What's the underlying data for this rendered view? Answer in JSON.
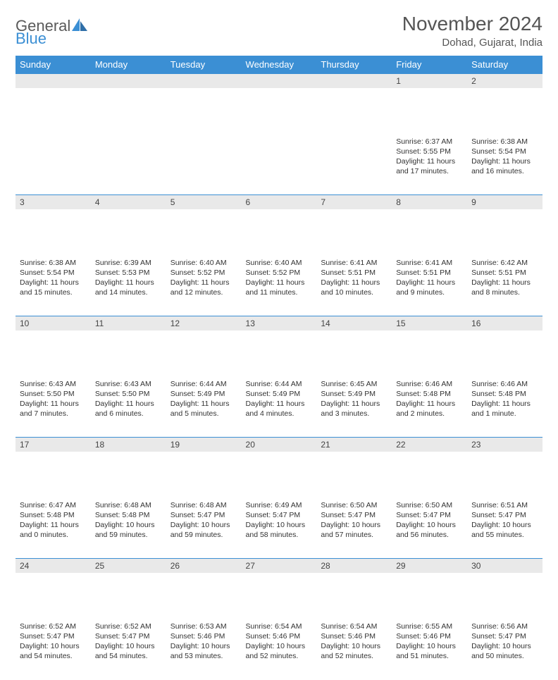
{
  "logo": {
    "text1": "General",
    "text2": "Blue"
  },
  "title": "November 2024",
  "location": "Dohad, Gujarat, India",
  "colors": {
    "header_bg": "#3b8fd4",
    "header_text": "#ffffff",
    "daynum_bg": "#e9e9e9",
    "border": "#3b8fd4",
    "page_bg": "#ffffff",
    "text": "#333333"
  },
  "days_of_week": [
    "Sunday",
    "Monday",
    "Tuesday",
    "Wednesday",
    "Thursday",
    "Friday",
    "Saturday"
  ],
  "weeks": [
    [
      null,
      null,
      null,
      null,
      null,
      {
        "n": "1",
        "sunrise": "Sunrise: 6:37 AM",
        "sunset": "Sunset: 5:55 PM",
        "daylight": "Daylight: 11 hours and 17 minutes."
      },
      {
        "n": "2",
        "sunrise": "Sunrise: 6:38 AM",
        "sunset": "Sunset: 5:54 PM",
        "daylight": "Daylight: 11 hours and 16 minutes."
      }
    ],
    [
      {
        "n": "3",
        "sunrise": "Sunrise: 6:38 AM",
        "sunset": "Sunset: 5:54 PM",
        "daylight": "Daylight: 11 hours and 15 minutes."
      },
      {
        "n": "4",
        "sunrise": "Sunrise: 6:39 AM",
        "sunset": "Sunset: 5:53 PM",
        "daylight": "Daylight: 11 hours and 14 minutes."
      },
      {
        "n": "5",
        "sunrise": "Sunrise: 6:40 AM",
        "sunset": "Sunset: 5:52 PM",
        "daylight": "Daylight: 11 hours and 12 minutes."
      },
      {
        "n": "6",
        "sunrise": "Sunrise: 6:40 AM",
        "sunset": "Sunset: 5:52 PM",
        "daylight": "Daylight: 11 hours and 11 minutes."
      },
      {
        "n": "7",
        "sunrise": "Sunrise: 6:41 AM",
        "sunset": "Sunset: 5:51 PM",
        "daylight": "Daylight: 11 hours and 10 minutes."
      },
      {
        "n": "8",
        "sunrise": "Sunrise: 6:41 AM",
        "sunset": "Sunset: 5:51 PM",
        "daylight": "Daylight: 11 hours and 9 minutes."
      },
      {
        "n": "9",
        "sunrise": "Sunrise: 6:42 AM",
        "sunset": "Sunset: 5:51 PM",
        "daylight": "Daylight: 11 hours and 8 minutes."
      }
    ],
    [
      {
        "n": "10",
        "sunrise": "Sunrise: 6:43 AM",
        "sunset": "Sunset: 5:50 PM",
        "daylight": "Daylight: 11 hours and 7 minutes."
      },
      {
        "n": "11",
        "sunrise": "Sunrise: 6:43 AM",
        "sunset": "Sunset: 5:50 PM",
        "daylight": "Daylight: 11 hours and 6 minutes."
      },
      {
        "n": "12",
        "sunrise": "Sunrise: 6:44 AM",
        "sunset": "Sunset: 5:49 PM",
        "daylight": "Daylight: 11 hours and 5 minutes."
      },
      {
        "n": "13",
        "sunrise": "Sunrise: 6:44 AM",
        "sunset": "Sunset: 5:49 PM",
        "daylight": "Daylight: 11 hours and 4 minutes."
      },
      {
        "n": "14",
        "sunrise": "Sunrise: 6:45 AM",
        "sunset": "Sunset: 5:49 PM",
        "daylight": "Daylight: 11 hours and 3 minutes."
      },
      {
        "n": "15",
        "sunrise": "Sunrise: 6:46 AM",
        "sunset": "Sunset: 5:48 PM",
        "daylight": "Daylight: 11 hours and 2 minutes."
      },
      {
        "n": "16",
        "sunrise": "Sunrise: 6:46 AM",
        "sunset": "Sunset: 5:48 PM",
        "daylight": "Daylight: 11 hours and 1 minute."
      }
    ],
    [
      {
        "n": "17",
        "sunrise": "Sunrise: 6:47 AM",
        "sunset": "Sunset: 5:48 PM",
        "daylight": "Daylight: 11 hours and 0 minutes."
      },
      {
        "n": "18",
        "sunrise": "Sunrise: 6:48 AM",
        "sunset": "Sunset: 5:48 PM",
        "daylight": "Daylight: 10 hours and 59 minutes."
      },
      {
        "n": "19",
        "sunrise": "Sunrise: 6:48 AM",
        "sunset": "Sunset: 5:47 PM",
        "daylight": "Daylight: 10 hours and 59 minutes."
      },
      {
        "n": "20",
        "sunrise": "Sunrise: 6:49 AM",
        "sunset": "Sunset: 5:47 PM",
        "daylight": "Daylight: 10 hours and 58 minutes."
      },
      {
        "n": "21",
        "sunrise": "Sunrise: 6:50 AM",
        "sunset": "Sunset: 5:47 PM",
        "daylight": "Daylight: 10 hours and 57 minutes."
      },
      {
        "n": "22",
        "sunrise": "Sunrise: 6:50 AM",
        "sunset": "Sunset: 5:47 PM",
        "daylight": "Daylight: 10 hours and 56 minutes."
      },
      {
        "n": "23",
        "sunrise": "Sunrise: 6:51 AM",
        "sunset": "Sunset: 5:47 PM",
        "daylight": "Daylight: 10 hours and 55 minutes."
      }
    ],
    [
      {
        "n": "24",
        "sunrise": "Sunrise: 6:52 AM",
        "sunset": "Sunset: 5:47 PM",
        "daylight": "Daylight: 10 hours and 54 minutes."
      },
      {
        "n": "25",
        "sunrise": "Sunrise: 6:52 AM",
        "sunset": "Sunset: 5:47 PM",
        "daylight": "Daylight: 10 hours and 54 minutes."
      },
      {
        "n": "26",
        "sunrise": "Sunrise: 6:53 AM",
        "sunset": "Sunset: 5:46 PM",
        "daylight": "Daylight: 10 hours and 53 minutes."
      },
      {
        "n": "27",
        "sunrise": "Sunrise: 6:54 AM",
        "sunset": "Sunset: 5:46 PM",
        "daylight": "Daylight: 10 hours and 52 minutes."
      },
      {
        "n": "28",
        "sunrise": "Sunrise: 6:54 AM",
        "sunset": "Sunset: 5:46 PM",
        "daylight": "Daylight: 10 hours and 52 minutes."
      },
      {
        "n": "29",
        "sunrise": "Sunrise: 6:55 AM",
        "sunset": "Sunset: 5:46 PM",
        "daylight": "Daylight: 10 hours and 51 minutes."
      },
      {
        "n": "30",
        "sunrise": "Sunrise: 6:56 AM",
        "sunset": "Sunset: 5:47 PM",
        "daylight": "Daylight: 10 hours and 50 minutes."
      }
    ]
  ]
}
